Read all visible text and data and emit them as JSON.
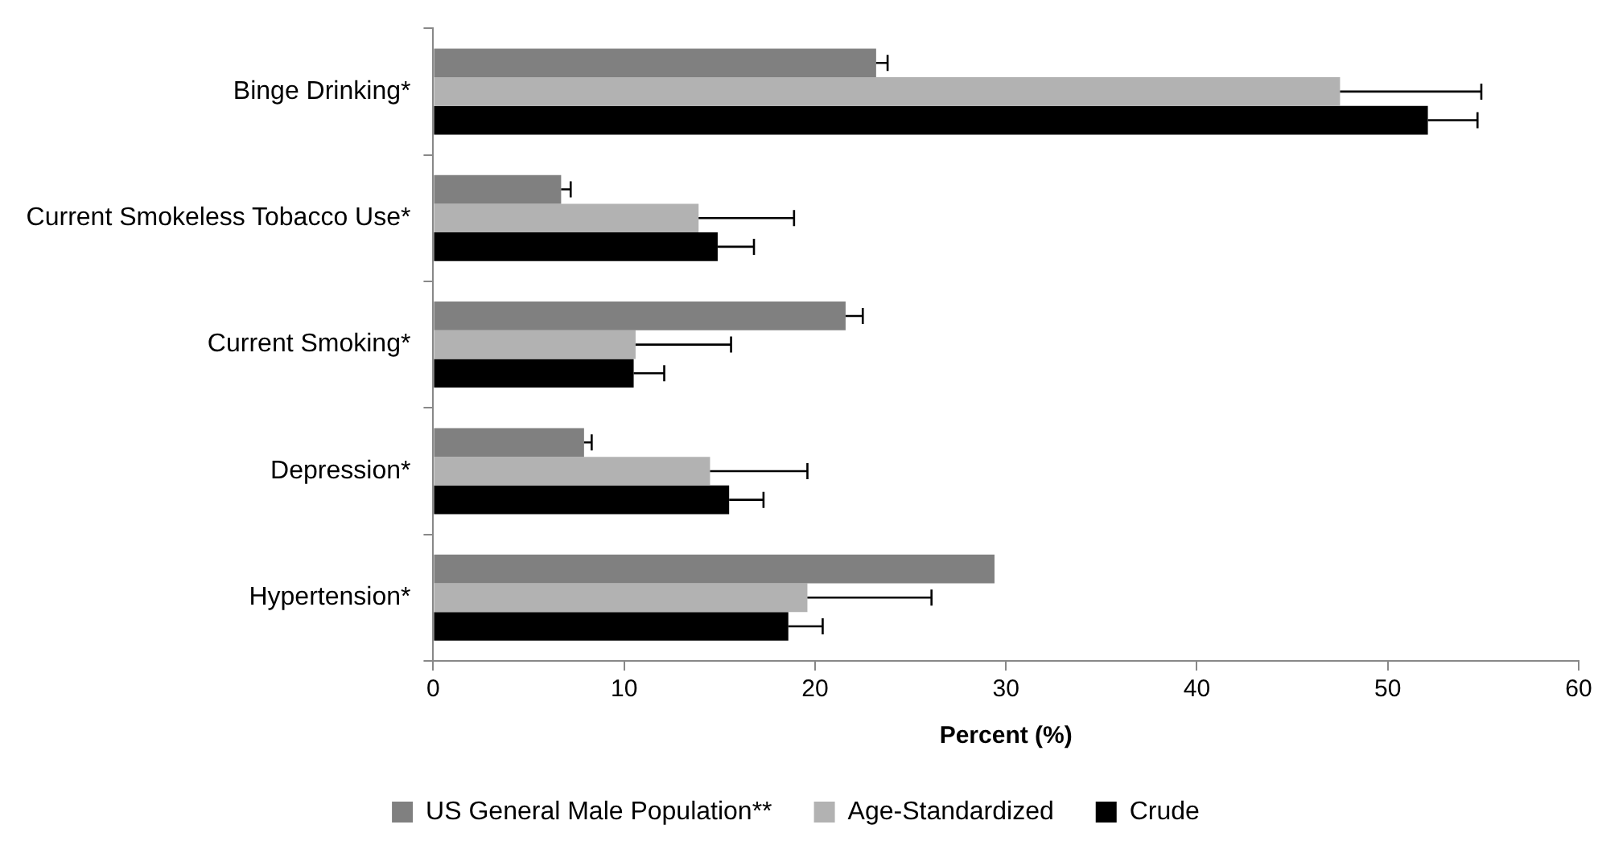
{
  "chart_data": {
    "type": "bar",
    "orientation": "horizontal",
    "xlabel": "Percent (%)",
    "categories": [
      "Binge Drinking*",
      "Current Smokeless Tobacco Use*",
      "Current Smoking*",
      "Depression*",
      "Hypertension*"
    ],
    "series": [
      {
        "name": "US General Male Population**",
        "color": "#808080",
        "values": [
          23.2,
          6.7,
          21.6,
          7.9,
          29.4
        ],
        "errors": [
          [
            23.2,
            23.8
          ],
          [
            6.7,
            7.2
          ],
          [
            21.6,
            22.5
          ],
          [
            7.9,
            8.3
          ],
          null
        ]
      },
      {
        "name": "Age-Standardized",
        "color": "#b2b2b2",
        "values": [
          47.5,
          13.9,
          10.6,
          14.5,
          19.6
        ],
        "errors": [
          [
            47.5,
            54.9
          ],
          [
            13.9,
            18.9
          ],
          [
            10.6,
            15.6
          ],
          [
            14.5,
            19.6
          ],
          [
            19.6,
            26.1
          ]
        ]
      },
      {
        "name": "Crude",
        "color": "#000000",
        "values": [
          52.1,
          14.9,
          10.5,
          15.5,
          18.6
        ],
        "errors": [
          [
            52.1,
            54.7
          ],
          [
            14.9,
            16.8
          ],
          [
            10.5,
            12.1
          ],
          [
            15.5,
            17.3
          ],
          [
            18.6,
            20.4
          ]
        ]
      }
    ],
    "xlim": [
      0,
      60
    ],
    "xticks": [
      0,
      10,
      20,
      30,
      40,
      50,
      60
    ],
    "grid": false,
    "legend": "bottom"
  }
}
